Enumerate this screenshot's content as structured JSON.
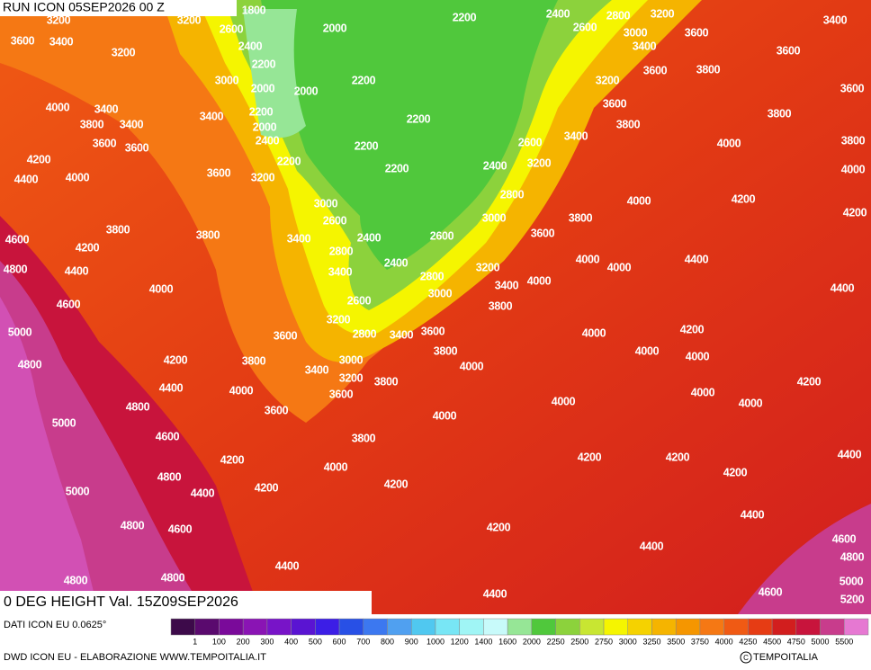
{
  "header": {
    "run": "RUN ICON 05SEP2026 00 Z",
    "title": "0 DEG HEIGHT Val. 15Z09SEP2026"
  },
  "footer": {
    "source": "DATI ICON EU 0.0625°",
    "credit": "DWD ICON EU - ELABORAZIONE WWW.TEMPOITALIA.IT",
    "copyright": "TEMPOITALIA"
  },
  "colorbar": {
    "labels": [
      1,
      100,
      200,
      300,
      400,
      500,
      600,
      700,
      800,
      900,
      1000,
      1200,
      1400,
      1600,
      2000,
      2250,
      2500,
      2750,
      3000,
      3250,
      3500,
      3750,
      4000,
      4250,
      4500,
      4750,
      5000,
      5500
    ],
    "colors": [
      "#3d0a4a",
      "#5a0a6e",
      "#7a0a9a",
      "#8a14b4",
      "#7814c8",
      "#5a14d2",
      "#3c1ee6",
      "#2850e6",
      "#3c78f0",
      "#50a0f0",
      "#50c8f0",
      "#78e6f5",
      "#a0f5f5",
      "#c8fafa",
      "#96e696",
      "#50c83c",
      "#8cd23c",
      "#c8e632",
      "#f5f500",
      "#f5d200",
      "#f5b400",
      "#f59600",
      "#f57814",
      "#f05a14",
      "#e63c14",
      "#d21e1e",
      "#c8143c",
      "#c83c8c",
      "#e678d2"
    ]
  },
  "contour_labels": [
    3200,
    3200,
    1800,
    2600,
    2200,
    2400,
    2800,
    3200,
    3400,
    3600,
    3400,
    2400,
    2000,
    2600,
    3000,
    3400,
    3600,
    3600,
    3200,
    2200,
    3000,
    2000,
    2000,
    2200,
    3200,
    3600,
    3800,
    3600,
    4000,
    3400,
    3400,
    2200,
    2200,
    3600,
    3800,
    3800,
    3400,
    2000,
    2400,
    3600,
    3600,
    2200,
    2600,
    3400,
    3800,
    4000,
    3800,
    4200,
    2200,
    2200,
    2400,
    3200,
    4000,
    4400,
    4000,
    3600,
    3200,
    2800,
    4000,
    4200,
    3000,
    2600,
    3000,
    3800,
    4200,
    3800,
    3800,
    3400,
    2400,
    2800,
    2600,
    3600,
    4600,
    4200,
    4000,
    4000,
    4400,
    4800,
    4400,
    2400,
    3400,
    2800,
    3200,
    4000,
    3400,
    4000,
    4400,
    4600,
    2600,
    3000,
    3800,
    3200,
    5000,
    3600,
    2800,
    3400,
    3600,
    4000,
    4200,
    3800,
    4800,
    4200,
    3800,
    3000,
    3400,
    3200,
    3800,
    4000,
    4000,
    4000,
    4400,
    4000,
    3600,
    4000,
    4200,
    4800,
    3600,
    4000,
    4000,
    5000,
    4000,
    4600,
    3800,
    4200,
    4000,
    4200,
    4200,
    4200,
    4400,
    4800,
    4200,
    4200,
    4400,
    5000,
    4200,
    4800,
    4600,
    4400,
    4600,
    4400,
    4400,
    4800,
    4800,
    4800,
    5000,
    4400,
    4600,
    5200
  ]
}
